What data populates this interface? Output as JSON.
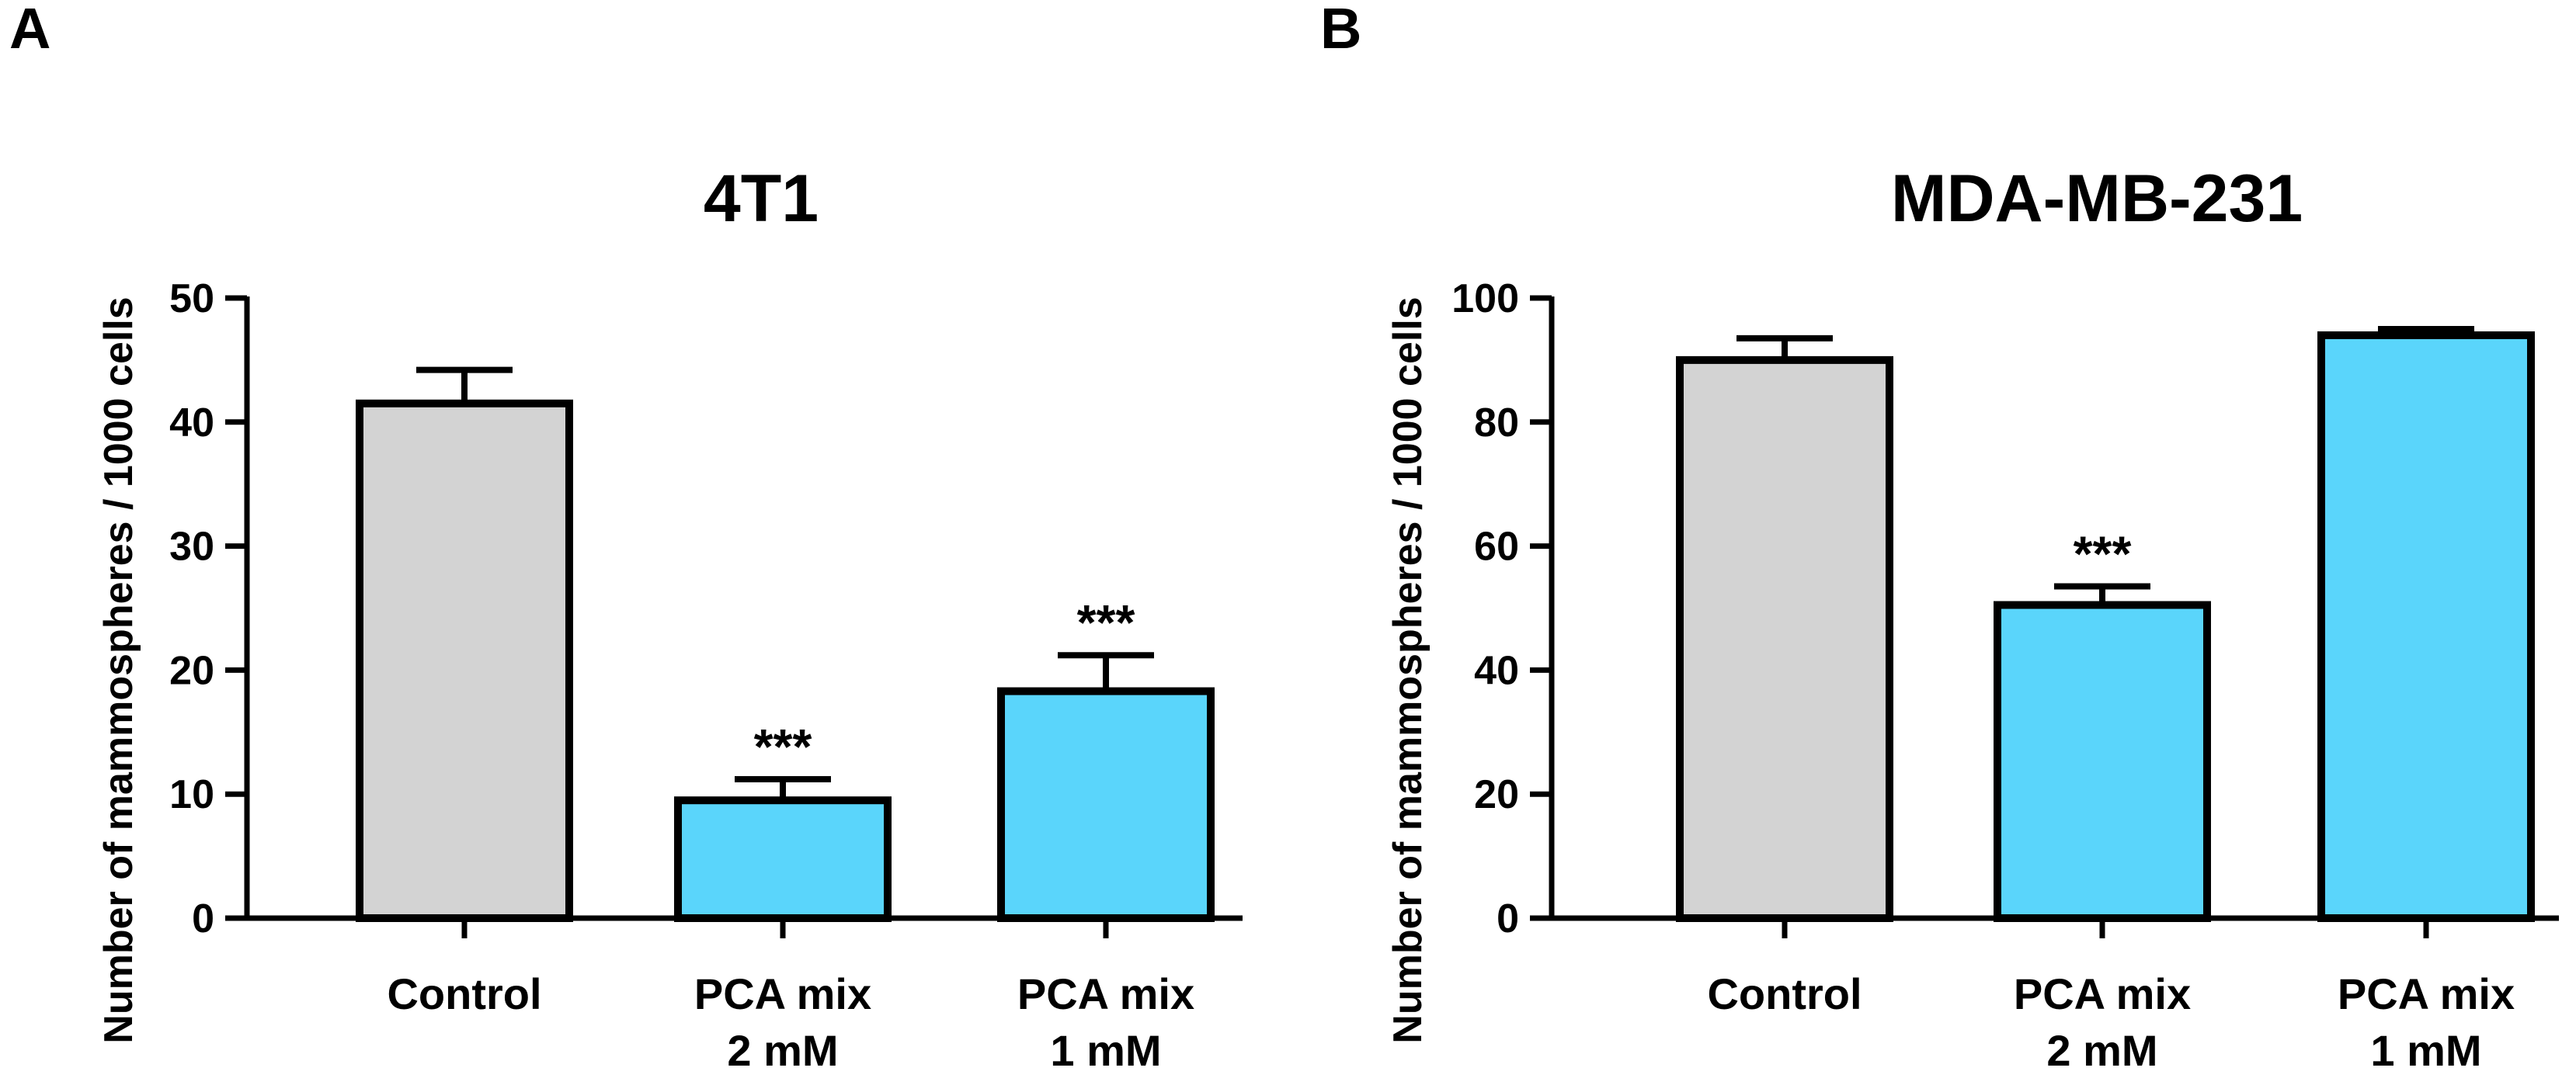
{
  "chart_data": [
    {
      "panel": "A",
      "type": "bar",
      "title": "4T1",
      "ylabel": "Number of mammospheres / 1000 cells",
      "xlabel": "",
      "ylim": [
        0,
        50
      ],
      "yticks": [
        0,
        10,
        20,
        30,
        40,
        50
      ],
      "categories": [
        [
          "Control"
        ],
        [
          "PCA mix",
          "2 mM"
        ],
        [
          "PCA mix",
          "1 mM"
        ]
      ],
      "values": [
        41.5,
        9.5,
        18.3
      ],
      "errors": [
        2.7,
        1.7,
        2.9
      ],
      "colors": [
        "#d3d3d3",
        "#5ad5fb",
        "#5ad5fb"
      ],
      "significance": [
        "",
        "***",
        "***"
      ]
    },
    {
      "panel": "B",
      "type": "bar",
      "title": "MDA-MB-231",
      "ylabel": "Number of mammospheres / 1000 cells",
      "xlabel": "",
      "ylim": [
        0,
        100
      ],
      "yticks": [
        0,
        20,
        40,
        60,
        80,
        100
      ],
      "categories": [
        [
          "Control"
        ],
        [
          "PCA mix",
          "2 mM"
        ],
        [
          "PCA mix",
          "1 mM"
        ]
      ],
      "values": [
        90,
        50.5,
        94
      ],
      "errors": [
        3.5,
        3,
        1
      ],
      "colors": [
        "#d3d3d3",
        "#5ad5fb",
        "#5ad5fb"
      ],
      "significance": [
        "",
        "***",
        ""
      ]
    }
  ]
}
